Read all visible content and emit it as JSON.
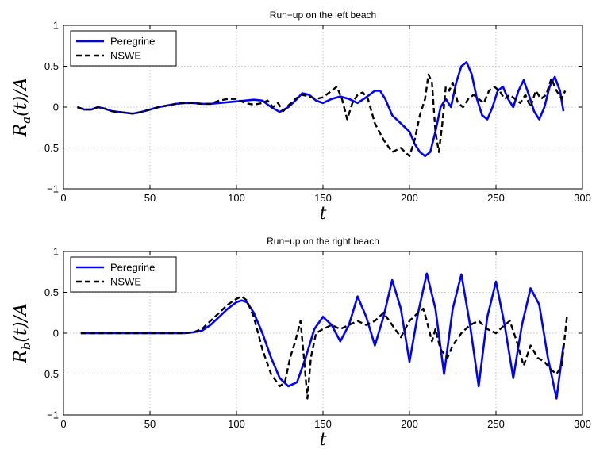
{
  "colors": {
    "peregrine": "#0000ff",
    "nswe": "#000000",
    "grid": "#b0b0b0",
    "axis": "#000000"
  },
  "chart_data": [
    {
      "type": "line",
      "title": "Run−up on the left beach",
      "xlabel": "t",
      "ylabel": "R_a(t)/A",
      "ylabel_main": "R",
      "ylabel_sub": "a",
      "ylabel_tail": "(t)/A",
      "xlim": [
        0,
        300
      ],
      "ylim": [
        -1,
        1
      ],
      "xticks": [
        0,
        50,
        100,
        150,
        200,
        250,
        300
      ],
      "yticks": [
        -1,
        -0.5,
        0,
        0.5,
        1
      ],
      "xtick_labels": [
        "0",
        "50",
        "100",
        "150",
        "200",
        "250",
        "300"
      ],
      "ytick_labels": [
        "−1",
        "−0.5",
        "0",
        "0.5",
        "1"
      ],
      "grid": true,
      "legend": "top-left",
      "series": [
        {
          "name": "Peregrine",
          "style": "solid",
          "x": [
            8,
            12,
            16,
            20,
            24,
            28,
            32,
            36,
            40,
            45,
            50,
            55,
            60,
            65,
            70,
            75,
            80,
            85,
            90,
            95,
            100,
            105,
            110,
            115,
            120,
            125,
            130,
            135,
            138,
            142,
            146,
            150,
            155,
            160,
            165,
            170,
            175,
            180,
            183,
            186,
            190,
            195,
            200,
            203,
            206,
            209,
            212,
            215,
            218,
            221,
            224,
            227,
            230,
            233,
            236,
            239,
            242,
            245,
            248,
            251,
            254,
            257,
            260,
            263,
            266,
            269,
            272,
            275,
            278,
            281,
            284,
            287,
            289
          ],
          "y": [
            0.0,
            -0.03,
            -0.03,
            0.0,
            -0.02,
            -0.05,
            -0.06,
            -0.07,
            -0.08,
            -0.06,
            -0.03,
            0.0,
            0.02,
            0.04,
            0.05,
            0.05,
            0.04,
            0.04,
            0.05,
            0.06,
            0.07,
            0.08,
            0.09,
            0.08,
            0.0,
            -0.06,
            0.0,
            0.1,
            0.17,
            0.15,
            0.08,
            0.05,
            0.1,
            0.13,
            0.1,
            0.05,
            0.12,
            0.2,
            0.2,
            0.1,
            -0.1,
            -0.2,
            -0.3,
            -0.45,
            -0.55,
            -0.6,
            -0.55,
            -0.3,
            0.0,
            0.1,
            0.0,
            0.3,
            0.5,
            0.55,
            0.4,
            0.1,
            -0.1,
            -0.15,
            0.0,
            0.2,
            0.25,
            0.1,
            0.0,
            0.2,
            0.33,
            0.15,
            -0.05,
            -0.15,
            0.0,
            0.25,
            0.37,
            0.2,
            -0.05
          ]
        },
        {
          "name": "NSWE",
          "style": "dashed",
          "x": [
            8,
            12,
            16,
            20,
            24,
            28,
            32,
            36,
            40,
            45,
            50,
            55,
            60,
            65,
            70,
            75,
            80,
            85,
            90,
            95,
            100,
            105,
            110,
            115,
            118,
            121,
            124,
            127,
            130,
            134,
            138,
            142,
            146,
            150,
            155,
            158,
            161,
            164,
            167,
            170,
            173,
            176,
            180,
            185,
            190,
            195,
            200,
            203,
            206,
            209,
            211,
            213,
            215,
            217,
            219,
            221,
            223,
            225,
            228,
            231,
            234,
            237,
            240,
            243,
            246,
            249,
            252,
            255,
            258,
            261,
            264,
            267,
            270,
            273,
            276,
            279,
            282,
            285,
            288,
            290
          ],
          "y": [
            0.0,
            -0.03,
            -0.03,
            0.0,
            -0.02,
            -0.05,
            -0.06,
            -0.07,
            -0.08,
            -0.06,
            -0.03,
            0.0,
            0.02,
            0.04,
            0.05,
            0.05,
            0.04,
            0.04,
            0.08,
            0.1,
            0.1,
            0.05,
            0.03,
            0.05,
            0.08,
            0.0,
            0.05,
            -0.05,
            0.02,
            0.1,
            0.15,
            0.13,
            0.1,
            0.12,
            0.2,
            0.25,
            0.1,
            -0.15,
            0.05,
            0.15,
            0.18,
            0.1,
            -0.2,
            -0.4,
            -0.55,
            -0.5,
            -0.6,
            -0.4,
            -0.1,
            0.1,
            0.4,
            0.3,
            -0.3,
            -0.55,
            -0.2,
            0.25,
            0.2,
            0.3,
            0.05,
            0.0,
            0.1,
            0.15,
            0.1,
            0.05,
            0.2,
            0.25,
            0.2,
            0.1,
            0.15,
            0.1,
            0.05,
            0.15,
            0.0,
            0.2,
            0.1,
            0.15,
            0.35,
            0.2,
            0.1,
            0.2
          ]
        }
      ]
    },
    {
      "type": "line",
      "title": "Run−up on the right beach",
      "xlabel": "t",
      "ylabel": "R_b(t)/A",
      "ylabel_main": "R",
      "ylabel_sub": "b",
      "ylabel_tail": "(t)/A",
      "xlim": [
        0,
        300
      ],
      "ylim": [
        -1,
        1
      ],
      "xticks": [
        0,
        50,
        100,
        150,
        200,
        250,
        300
      ],
      "yticks": [
        -1,
        -0.5,
        0,
        0.5,
        1
      ],
      "xtick_labels": [
        "0",
        "50",
        "100",
        "150",
        "200",
        "250",
        "300"
      ],
      "ytick_labels": [
        "−1",
        "−0.5",
        "0",
        "0.5",
        "1"
      ],
      "grid": true,
      "legend": "top-left",
      "series": [
        {
          "name": "Peregrine",
          "style": "solid",
          "x": [
            10,
            20,
            30,
            40,
            50,
            60,
            70,
            75,
            80,
            85,
            90,
            95,
            100,
            103,
            106,
            110,
            115,
            120,
            125,
            130,
            135,
            140,
            145,
            150,
            155,
            160,
            165,
            170,
            175,
            180,
            185,
            190,
            195,
            200,
            205,
            210,
            215,
            220,
            225,
            230,
            235,
            240,
            245,
            250,
            255,
            260,
            265,
            270,
            275,
            280,
            285,
            289
          ],
          "y": [
            0,
            0,
            0,
            0,
            0,
            0,
            0,
            0.01,
            0.03,
            0.1,
            0.2,
            0.3,
            0.38,
            0.4,
            0.38,
            0.25,
            0.0,
            -0.3,
            -0.55,
            -0.65,
            -0.6,
            -0.3,
            0.05,
            0.2,
            0.1,
            -0.1,
            0.1,
            0.45,
            0.2,
            -0.15,
            0.2,
            0.65,
            0.3,
            -0.35,
            0.25,
            0.73,
            0.3,
            -0.5,
            0.3,
            0.72,
            0.1,
            -0.65,
            0.2,
            0.63,
            0.1,
            -0.55,
            0.1,
            0.55,
            0.35,
            -0.3,
            -0.8,
            -0.15
          ]
        },
        {
          "name": "NSWE",
          "style": "dashed",
          "x": [
            10,
            20,
            30,
            40,
            50,
            60,
            70,
            75,
            80,
            85,
            90,
            95,
            100,
            103,
            106,
            110,
            115,
            120,
            125,
            128,
            131,
            134,
            137,
            139,
            141,
            143,
            146,
            150,
            155,
            160,
            165,
            170,
            175,
            180,
            185,
            190,
            195,
            200,
            205,
            208,
            210,
            213,
            215,
            218,
            222,
            225,
            230,
            235,
            240,
            245,
            250,
            255,
            258,
            262,
            266,
            270,
            274,
            278,
            282,
            285,
            288,
            291
          ],
          "y": [
            0,
            0,
            0,
            0,
            0,
            0,
            0,
            0.01,
            0.05,
            0.15,
            0.25,
            0.35,
            0.42,
            0.45,
            0.4,
            0.2,
            -0.2,
            -0.5,
            -0.65,
            -0.6,
            -0.3,
            -0.1,
            0.15,
            -0.3,
            -0.8,
            -0.3,
            0.0,
            0.05,
            0.1,
            0.05,
            0.1,
            0.15,
            0.1,
            0.15,
            0.25,
            0.1,
            -0.05,
            0.15,
            0.25,
            0.3,
            0.15,
            -0.1,
            0.05,
            -0.2,
            -0.3,
            -0.15,
            0.0,
            0.1,
            0.15,
            0.05,
            0.0,
            0.1,
            0.15,
            -0.1,
            -0.4,
            -0.15,
            -0.3,
            -0.35,
            -0.45,
            -0.5,
            -0.4,
            0.2
          ]
        }
      ]
    }
  ]
}
